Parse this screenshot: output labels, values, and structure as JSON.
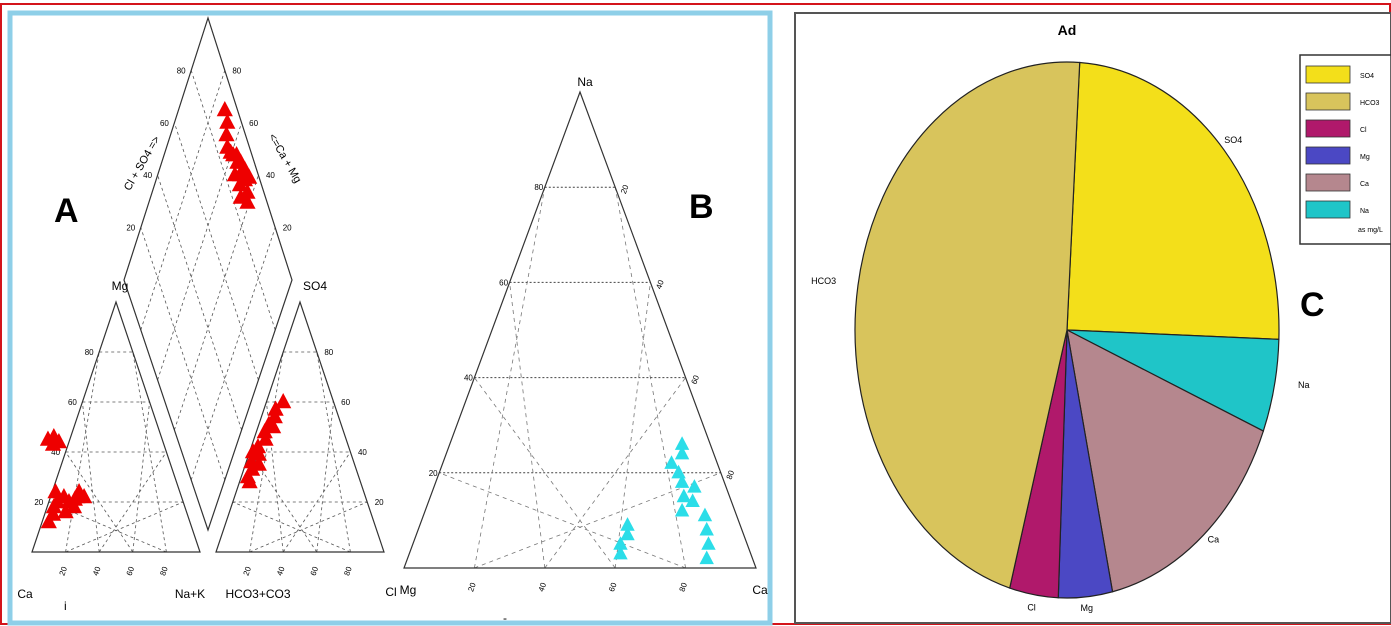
{
  "colors": {
    "outer_border": "#d4141b",
    "left_border": "#8ecfe8",
    "right_border": "#555555",
    "piper_marker": "#ee0000",
    "ternary_marker": "#2bdde8"
  },
  "panels": {
    "piper": {
      "letter": "A",
      "diamond_left_label": "Cl + SO4 =>",
      "diamond_right_label": "<=Ca + Mg",
      "diamond_left_ticks": [
        "80",
        "60",
        "40",
        "20"
      ],
      "diamond_right_ticks": [
        "80",
        "60",
        "40",
        "20"
      ],
      "cation_apex": "Mg",
      "cation_left_corner": "Ca",
      "cation_right_corner": "Na+K",
      "cation_ticks": [
        "80",
        "60",
        "40",
        "20"
      ],
      "cation_bottom_ticks": [
        "20",
        "40",
        "60",
        "80"
      ],
      "anion_apex": "SO4",
      "anion_left_corner": "HCO3+CO3",
      "anion_right_corner": "Cl",
      "anion_ticks": [
        "80",
        "60",
        "40",
        "20"
      ],
      "anion_bottom_ticks": [
        "20",
        "40",
        "60",
        "80"
      ],
      "footnote": "i"
    },
    "ternary": {
      "letter": "B",
      "apex": "Na",
      "left_corner": "Mg",
      "right_corner": "Ca",
      "left_ticks": [
        "80",
        "60",
        "40",
        "20"
      ],
      "right_ticks": [
        "20",
        "40",
        "60",
        "80"
      ],
      "bottom_ticks": [
        "20",
        "40",
        "60",
        "80"
      ],
      "footnote": "-"
    },
    "pie": {
      "letter": "C",
      "legend_title": "as mg/L"
    }
  },
  "chart_data": [
    {
      "type": "scatter",
      "name": "piper",
      "title": "",
      "cation_triangle": {
        "axes": [
          "Ca",
          "Mg",
          "Na+K"
        ],
        "points": [
          {
            "ca": 80,
            "mg": 15
          },
          {
            "ca": 78,
            "mg": 18
          },
          {
            "ca": 75,
            "mg": 20
          },
          {
            "ca": 70,
            "mg": 22
          },
          {
            "ca": 68,
            "mg": 20
          },
          {
            "ca": 72,
            "mg": 16
          },
          {
            "ca": 66,
            "mg": 18
          },
          {
            "ca": 64,
            "mg": 21
          },
          {
            "ca": 62,
            "mg": 22
          },
          {
            "ca": 60,
            "mg": 24
          },
          {
            "ca": 58,
            "mg": 22
          },
          {
            "ca": 84,
            "mg": 12
          },
          {
            "ca": 74,
            "mg": 24
          },
          {
            "ca": 68,
            "mg": 45
          },
          {
            "ca": 66,
            "mg": 43
          },
          {
            "ca": 64,
            "mg": 46
          },
          {
            "ca": 62,
            "mg": 44
          }
        ]
      },
      "anion_triangle": {
        "axes": [
          "HCO3+CO3",
          "SO4",
          "Cl"
        ],
        "points": [
          {
            "so4": 30,
            "cl": 4
          },
          {
            "so4": 33,
            "cl": 5
          },
          {
            "so4": 36,
            "cl": 3
          },
          {
            "so4": 39,
            "cl": 6
          },
          {
            "so4": 42,
            "cl": 4
          },
          {
            "so4": 45,
            "cl": 7
          },
          {
            "so4": 48,
            "cl": 5
          },
          {
            "so4": 51,
            "cl": 6
          },
          {
            "so4": 54,
            "cl": 8
          },
          {
            "so4": 57,
            "cl": 7
          },
          {
            "so4": 60,
            "cl": 10
          },
          {
            "so4": 40,
            "cl": 2
          },
          {
            "so4": 35,
            "cl": 8
          },
          {
            "so4": 50,
            "cl": 9
          },
          {
            "so4": 28,
            "cl": 6
          }
        ]
      },
      "diamond": {
        "axes": [
          "Cl + SO4",
          "Ca + Mg"
        ],
        "points": [
          {
            "clso4": 46,
            "camg": 95
          },
          {
            "clso4": 50,
            "camg": 94
          },
          {
            "clso4": 54,
            "camg": 93
          },
          {
            "clso4": 58,
            "camg": 92
          },
          {
            "clso4": 44,
            "camg": 91
          },
          {
            "clso4": 48,
            "camg": 92
          },
          {
            "clso4": 52,
            "camg": 90
          },
          {
            "clso4": 56,
            "camg": 91
          },
          {
            "clso4": 60,
            "camg": 90
          },
          {
            "clso4": 62,
            "camg": 89
          },
          {
            "clso4": 65,
            "camg": 88
          },
          {
            "clso4": 68,
            "camg": 90
          },
          {
            "clso4": 42,
            "camg": 89
          },
          {
            "clso4": 55,
            "camg": 87
          },
          {
            "clso4": 50,
            "camg": 88
          },
          {
            "clso4": 47,
            "camg": 86
          },
          {
            "clso4": 70,
            "camg": 93
          },
          {
            "clso4": 74,
            "camg": 94
          }
        ]
      }
    },
    {
      "type": "scatter",
      "name": "ternary",
      "title": "",
      "axes": [
        "Mg",
        "Na",
        "Ca"
      ],
      "points": [
        {
          "na": 3,
          "ca": 60
        },
        {
          "na": 5,
          "ca": 59
        },
        {
          "na": 7,
          "ca": 60
        },
        {
          "na": 9,
          "ca": 59
        },
        {
          "na": 22,
          "ca": 65
        },
        {
          "na": 24,
          "ca": 67
        },
        {
          "na": 26,
          "ca": 66
        },
        {
          "na": 20,
          "ca": 68
        },
        {
          "na": 18,
          "ca": 70
        },
        {
          "na": 15,
          "ca": 72
        },
        {
          "na": 12,
          "ca": 73
        },
        {
          "na": 14,
          "ca": 75
        },
        {
          "na": 17,
          "ca": 74
        },
        {
          "na": 11,
          "ca": 80
        },
        {
          "na": 8,
          "ca": 82
        },
        {
          "na": 5,
          "ca": 84
        },
        {
          "na": 2,
          "ca": 85
        }
      ]
    },
    {
      "type": "pie",
      "name": "composition",
      "title": "Ad",
      "unit": "as mg/L",
      "slices": [
        {
          "label": "SO4",
          "legend": "SO4",
          "value": 24.6,
          "color": "#f3df1a"
        },
        {
          "label": "Na",
          "legend": "Na",
          "value": 5.6,
          "color": "#1fc5c8"
        },
        {
          "label": "Ca",
          "legend": "Ca",
          "value": 15.4,
          "color": "#b5878e"
        },
        {
          "label": "Mg",
          "legend": "Mg",
          "value": 4.1,
          "color": "#4b48c4"
        },
        {
          "label": "Cl",
          "legend": "Cl",
          "value": 3.7,
          "color": "#b0196b"
        },
        {
          "label": "HCO3",
          "legend": "HCO3",
          "value": 46.6,
          "color": "#d8c45c"
        }
      ],
      "legend_order": [
        "SO4",
        "HCO3",
        "Cl",
        "Mg",
        "Ca",
        "Na"
      ]
    }
  ]
}
